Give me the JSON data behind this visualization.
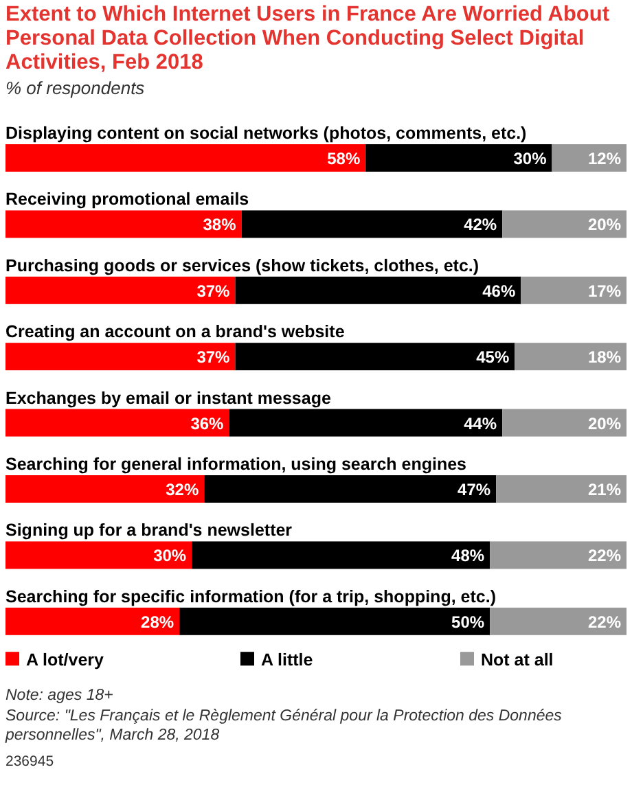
{
  "chart_data": {
    "type": "bar",
    "orientation": "horizontal",
    "stacked": true,
    "title": "Extent to Which Internet Users in France Are Worried About Personal Data Collection When Conducting Select Digital Activities, Feb 2018",
    "subtitle": "% of respondents",
    "categories": [
      "Displaying content on social networks (photos, comments, etc.)",
      "Receiving promotional emails",
      "Purchasing goods or services (show tickets, clothes, etc.)",
      "Creating an account on a brand's website",
      "Exchanges by email or instant message",
      "Searching for general information, using search engines",
      "Signing up for a brand's newsletter",
      "Searching for specific information (for a trip, shopping, etc.)"
    ],
    "series": [
      {
        "name": "A lot/very",
        "color": "#ff0000",
        "values": [
          58,
          38,
          37,
          37,
          36,
          32,
          30,
          28
        ],
        "value_labels": [
          "58%",
          "38%",
          "37%",
          "37%",
          "36%",
          "32%",
          "30%",
          "28%"
        ]
      },
      {
        "name": "A little",
        "color": "#000000",
        "values": [
          30,
          42,
          46,
          45,
          44,
          47,
          48,
          50
        ],
        "value_labels": [
          "30%",
          "42%",
          "46%",
          "45%",
          "44%",
          "47%",
          "48%",
          "50%"
        ]
      },
      {
        "name": "Not at all",
        "color": "#999999",
        "values": [
          12,
          20,
          17,
          18,
          20,
          21,
          22,
          22
        ],
        "value_labels": [
          "12%",
          "20%",
          "17%",
          "18%",
          "20%",
          "21%",
          "22%",
          "22%"
        ]
      }
    ],
    "legend": "bottom",
    "annotations": [
      "Note: ages 18+",
      "Source: \"Les Français et le Règlement Général pour la Protection des Données personnelles\", March 28, 2018",
      "236945"
    ]
  }
}
